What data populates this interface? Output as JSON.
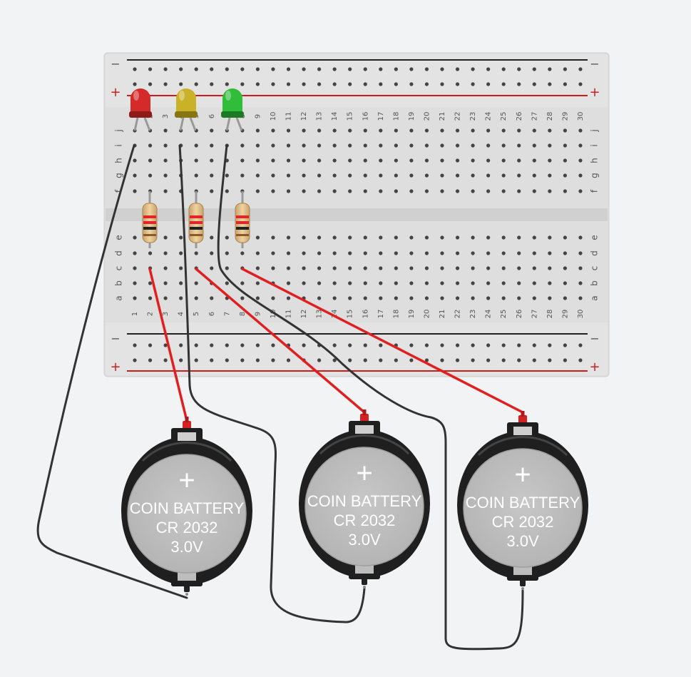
{
  "breadboard": {
    "columns": 30,
    "row_letters_top": [
      "j",
      "i",
      "h",
      "g",
      "f"
    ],
    "row_letters_bottom": [
      "e",
      "d",
      "c",
      "b",
      "a"
    ],
    "rail_minus": "−",
    "rail_plus": "+",
    "colors": {
      "board": "#dedede",
      "hole": "#444444",
      "rail_red": "#c81e1e",
      "rail_black": "#222222"
    }
  },
  "leds": [
    {
      "name": "red-led",
      "color": "#d42a2a",
      "dark": "#8e1a1a"
    },
    {
      "name": "yellow-led",
      "color": "#c9b227",
      "dark": "#877512"
    },
    {
      "name": "green-led",
      "color": "#2fbd3a",
      "dark": "#1d7a24"
    }
  ],
  "resistors": [
    {
      "name": "resistor-1",
      "bands": [
        "#e3242b",
        "#e3242b",
        "#222222"
      ]
    },
    {
      "name": "resistor-2",
      "bands": [
        "#e3242b",
        "#e3242b",
        "#222222"
      ]
    },
    {
      "name": "resistor-3",
      "bands": [
        "#e3242b",
        "#e3242b",
        "#222222"
      ]
    }
  ],
  "batteries": [
    {
      "name": "battery-1",
      "label_line1": "COIN BATTERY",
      "label_line2": "CR 2032",
      "label_line3": "3.0V",
      "plus_symbol": "+"
    },
    {
      "name": "battery-2",
      "label_line1": "COIN BATTERY",
      "label_line2": "CR 2032",
      "label_line3": "3.0V",
      "plus_symbol": "+"
    },
    {
      "name": "battery-3",
      "label_line1": "COIN BATTERY",
      "label_line2": "CR 2032",
      "label_line3": "3.0V",
      "plus_symbol": "+"
    }
  ],
  "wires": {
    "positive_color": "#e02020",
    "negative_color": "#333333"
  }
}
